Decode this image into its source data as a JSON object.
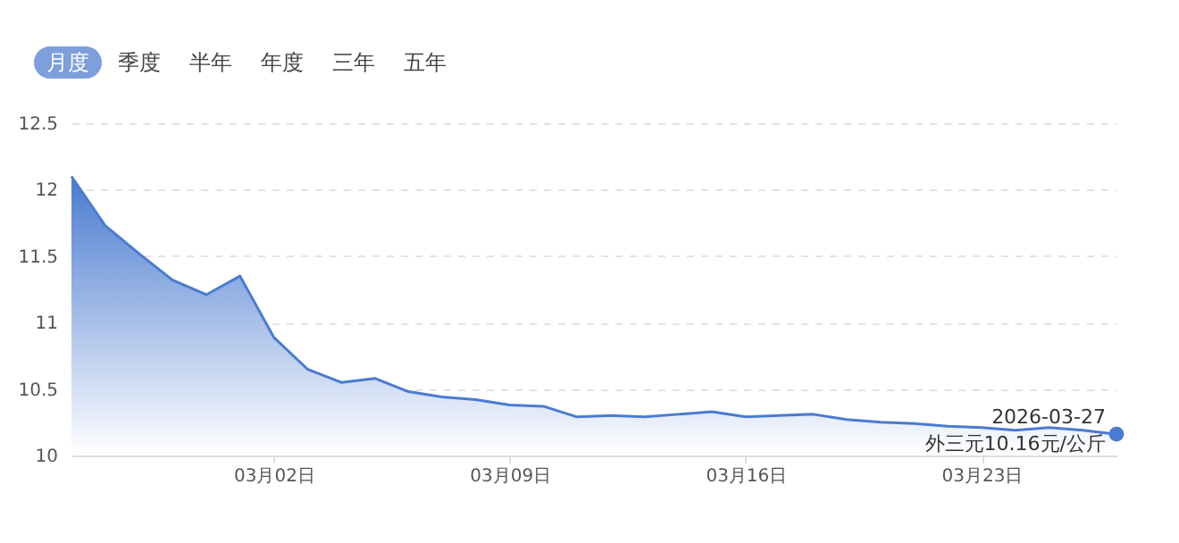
{
  "chart_data": {
    "type": "area",
    "x": [
      "2026-02-24",
      "2026-02-25",
      "2026-02-26",
      "2026-02-27",
      "2026-02-28",
      "2026-03-01",
      "2026-03-02",
      "2026-03-03",
      "2026-03-04",
      "2026-03-05",
      "2026-03-06",
      "2026-03-07",
      "2026-03-08",
      "2026-03-09",
      "2026-03-10",
      "2026-03-11",
      "2026-03-12",
      "2026-03-13",
      "2026-03-14",
      "2026-03-15",
      "2026-03-16",
      "2026-03-17",
      "2026-03-18",
      "2026-03-19",
      "2026-03-20",
      "2026-03-21",
      "2026-03-22",
      "2026-03-23",
      "2026-03-24",
      "2026-03-25",
      "2026-03-26",
      "2026-03-27"
    ],
    "series": [
      {
        "color": "#4a7bd0",
        "values": [
          12.1,
          11.73,
          11.52,
          11.32,
          11.21,
          11.35,
          10.89,
          10.65,
          10.55,
          10.58,
          10.48,
          10.44,
          10.42,
          10.38,
          10.37,
          10.29,
          10.3,
          10.29,
          10.31,
          10.33,
          10.29,
          10.3,
          10.31,
          10.27,
          10.25,
          10.24,
          10.22,
          10.21,
          10.19,
          10.21,
          10.19,
          10.16
        ]
      }
    ],
    "xlim": [
      "2026-02-24",
      "2026-03-27"
    ],
    "xticks": [
      {
        "value": "2026-03-02",
        "label": "03月02日"
      },
      {
        "value": "2026-03-09",
        "label": "03月09日"
      },
      {
        "value": "2026-03-16",
        "label": "03月16日"
      },
      {
        "value": "2026-03-23",
        "label": "03月23日"
      }
    ],
    "ylim": [
      10,
      12.5
    ],
    "yticks": [
      10,
      10.5,
      11,
      11.5,
      12,
      12.5
    ],
    "grid": "y",
    "annotations": [
      "月度",
      "季度",
      "半年",
      "年度",
      "三年",
      "五年",
      {
        "text": "2026-03-27\n外三元10.16元/公斤",
        "x": "2026-03-27",
        "y": 10.16
      }
    ]
  }
}
